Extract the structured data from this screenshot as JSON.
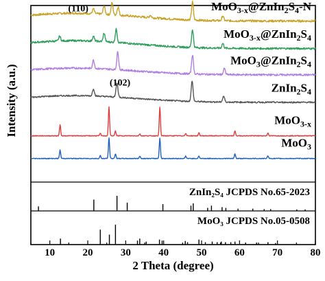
{
  "chart_data": {
    "type": "line",
    "xlabel": "2 Theta (degree)",
    "ylabel": "Intensity (a.u.)",
    "xlim": [
      5,
      80
    ],
    "x_ticks": [
      10,
      20,
      30,
      40,
      50,
      60,
      70,
      80
    ],
    "grid": false,
    "series": [
      {
        "label_main": "MoO",
        "label_sub": "3-x",
        "label_mid": "@ZnIn",
        "label_sub2": "2",
        "label_mid2": "S",
        "label_sub3": "4",
        "label_tail": "-N",
        "color": "#c9a227",
        "baseline": 0.935,
        "noise": 0.009,
        "bg_amp": 0.035,
        "peaks": [
          [
            21.5,
            0.02
          ],
          [
            24.3,
            0.035
          ],
          [
            26.4,
            0.05
          ],
          [
            28.0,
            0.035
          ],
          [
            36.5,
            0.01
          ],
          [
            47.6,
            0.075
          ],
          [
            55.6,
            0.02
          ]
        ]
      },
      {
        "label_main": "MoO",
        "label_sub": "3-x",
        "label_mid": "@ZnIn",
        "label_sub2": "2",
        "label_mid2": "S",
        "label_sub3": "4",
        "label_tail": "",
        "color": "#2e9e5b",
        "baseline": 0.82,
        "noise": 0.008,
        "bg_amp": 0.035,
        "peaks": [
          [
            12.6,
            0.02
          ],
          [
            21.5,
            0.02
          ],
          [
            24.3,
            0.035
          ],
          [
            27.5,
            0.055
          ],
          [
            47.6,
            0.075
          ],
          [
            55.6,
            0.02
          ]
        ]
      },
      {
        "label_main": "MoO",
        "label_sub": "3",
        "label_mid": "@ZnIn",
        "label_sub2": "2",
        "label_mid2": "S",
        "label_sub3": "4",
        "label_tail": "",
        "color": "#b37fe0",
        "baseline": 0.71,
        "noise": 0.008,
        "bg_amp": 0.03,
        "peaks": [
          [
            21.5,
            0.035
          ],
          [
            27.9,
            0.075
          ],
          [
            47.6,
            0.08
          ],
          [
            56.0,
            0.025
          ]
        ]
      },
      {
        "label_main": "ZnIn",
        "label_sub": "2",
        "label_mid": "S",
        "label_sub2": "4",
        "label_mid2": "",
        "label_sub3": "",
        "label_tail": "",
        "color": "#555555",
        "baseline": 0.595,
        "noise": 0.006,
        "bg_amp": 0.03,
        "peaks": [
          [
            21.5,
            0.03
          ],
          [
            27.7,
            0.06
          ],
          [
            47.5,
            0.085
          ],
          [
            55.8,
            0.025
          ]
        ]
      },
      {
        "label_main": "MoO",
        "label_sub": "3-x",
        "label_mid": "",
        "label_sub2": "",
        "label_mid2": "",
        "label_sub3": "",
        "label_tail": "",
        "color": "#e03c3c",
        "baseline": 0.455,
        "noise": 0.003,
        "bg_amp": 0,
        "peaks": [
          [
            12.7,
            0.045
          ],
          [
            23.3,
            0.01
          ],
          [
            25.6,
            0.12
          ],
          [
            27.3,
            0.02
          ],
          [
            33.7,
            0.008
          ],
          [
            39.0,
            0.12
          ],
          [
            45.8,
            0.01
          ],
          [
            49.3,
            0.012
          ],
          [
            58.8,
            0.02
          ],
          [
            67.5,
            0.012
          ]
        ]
      },
      {
        "label_main": "MoO",
        "label_sub": "3",
        "label_mid": "",
        "label_sub2": "",
        "label_mid2": "",
        "label_sub3": "",
        "label_tail": "",
        "color": "#1f5fbf",
        "baseline": 0.36,
        "noise": 0.003,
        "bg_amp": 0,
        "peaks": [
          [
            12.7,
            0.035
          ],
          [
            23.3,
            0.012
          ],
          [
            25.6,
            0.085
          ],
          [
            27.3,
            0.02
          ],
          [
            33.7,
            0.01
          ],
          [
            39.0,
            0.085
          ],
          [
            45.8,
            0.01
          ],
          [
            49.3,
            0.01
          ],
          [
            58.8,
            0.02
          ],
          [
            67.5,
            0.012
          ]
        ]
      }
    ],
    "references": [
      {
        "label": "ZnIn₂S₄ JCPDS No.65-2023",
        "lines": [
          [
            7.0,
            0.3
          ],
          [
            21.6,
            0.75
          ],
          [
            27.7,
            1.0
          ],
          [
            30.4,
            0.55
          ],
          [
            39.8,
            0.45
          ],
          [
            47.2,
            0.35
          ],
          [
            47.8,
            0.5
          ],
          [
            51.6,
            0.2
          ],
          [
            52.6,
            0.35
          ],
          [
            55.4,
            0.25
          ],
          [
            56.4,
            0.2
          ],
          [
            59.6,
            0.15
          ],
          [
            63.5,
            0.15
          ],
          [
            66.5,
            0.12
          ],
          [
            68.2,
            0.12
          ],
          [
            75.1,
            0.1
          ],
          [
            77.3,
            0.1
          ]
        ]
      },
      {
        "label": "MoO₃ JCPDS No.05-0508",
        "lines": [
          [
            12.8,
            0.3
          ],
          [
            23.3,
            0.75
          ],
          [
            25.7,
            0.5
          ],
          [
            27.3,
            1.0
          ],
          [
            33.1,
            0.2
          ],
          [
            33.7,
            0.3
          ],
          [
            35.4,
            0.15
          ],
          [
            38.9,
            0.25
          ],
          [
            39.6,
            0.2
          ],
          [
            45.7,
            0.18
          ],
          [
            46.3,
            0.12
          ],
          [
            49.3,
            0.25
          ],
          [
            51.0,
            0.12
          ],
          [
            52.8,
            0.15
          ],
          [
            54.1,
            0.12
          ],
          [
            55.2,
            0.15
          ],
          [
            56.3,
            0.12
          ],
          [
            57.7,
            0.12
          ],
          [
            58.8,
            0.15
          ],
          [
            61.6,
            0.1
          ],
          [
            64.5,
            0.1
          ],
          [
            67.5,
            0.12
          ],
          [
            69.5,
            0.08
          ]
        ]
      }
    ],
    "annotations": [
      {
        "text": "(110)",
        "x": 17.5,
        "y": 0.975
      },
      {
        "text": "(102)",
        "x": 28.5,
        "y": 0.665
      }
    ]
  }
}
